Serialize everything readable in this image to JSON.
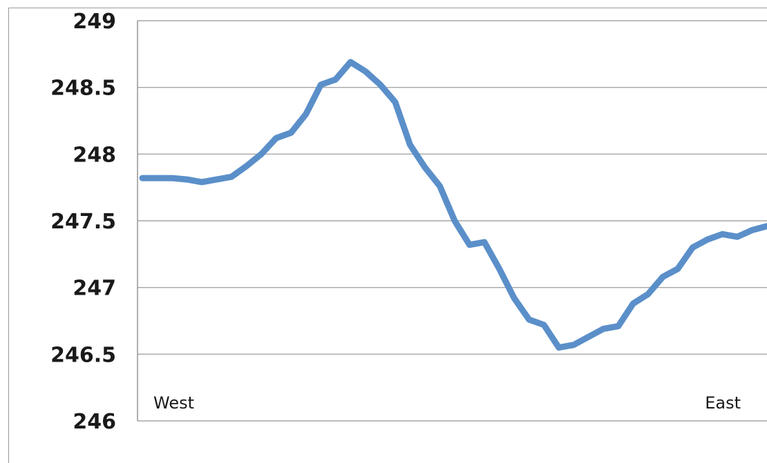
{
  "chart_data": {
    "type": "line",
    "title": "",
    "xlabel": "",
    "ylabel": "",
    "ylim": [
      246,
      249
    ],
    "yticks": [
      "249",
      "248.5",
      "248",
      "247.5",
      "247",
      "246.5",
      "246"
    ],
    "grid": true,
    "legend": "none",
    "line_color": "#5B8FC9",
    "annotations": [
      {
        "text": "West",
        "position": "bottom-left"
      },
      {
        "text": "East",
        "position": "bottom-right"
      }
    ],
    "series": [
      {
        "values": [
          247.82,
          247.82,
          247.82,
          247.81,
          247.79,
          247.81,
          247.83,
          247.91,
          248.0,
          248.12,
          248.16,
          248.3,
          248.52,
          248.56,
          248.69,
          248.62,
          248.52,
          248.39,
          248.07,
          247.9,
          247.76,
          247.5,
          247.32,
          247.34,
          247.14,
          246.92,
          246.76,
          246.72,
          246.55,
          246.57,
          246.63,
          246.69,
          246.71,
          246.88,
          246.95,
          247.08,
          247.14,
          247.3,
          247.36,
          247.4,
          247.38,
          247.43,
          247.46
        ]
      }
    ]
  }
}
